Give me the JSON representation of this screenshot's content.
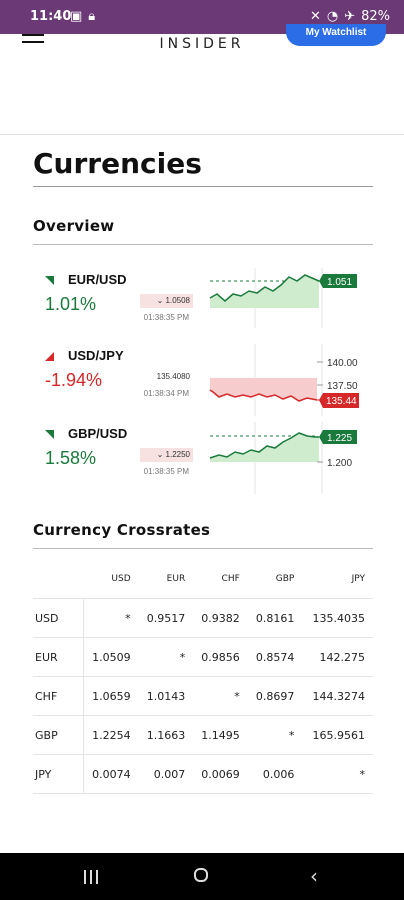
{
  "status_bar": {
    "time": "11:40",
    "left_icons": [
      "image-icon",
      "lock-icon"
    ],
    "right_icons": [
      "mute-icon",
      "wifi-icon",
      "airplane-icon"
    ],
    "battery": "82%"
  },
  "header": {
    "logo": "INSIDER",
    "watchlist_button": "My Watchlist"
  },
  "page_title": "Currencies",
  "overview": {
    "heading": "Overview",
    "rows": [
      {
        "pair": "EUR/USD",
        "change": "1.01%",
        "direction": "down-arrow",
        "price": "1.0508",
        "price_highlight": true,
        "time": "01:38:35 PM",
        "chart_current": "1.051",
        "chart_axis": [],
        "color": "#1a7a3c"
      },
      {
        "pair": "USD/JPY",
        "change": "-1.94%",
        "direction": "up-arrow",
        "price": "135.4080",
        "price_highlight": false,
        "time": "01:38:34 PM",
        "chart_current": "135.44",
        "chart_axis": [
          "140.00",
          "137.50"
        ],
        "color": "#d62828"
      },
      {
        "pair": "GBP/USD",
        "change": "1.58%",
        "direction": "down-arrow",
        "price": "1.2250",
        "price_highlight": true,
        "time": "01:38:35 PM",
        "chart_current": "1.225",
        "chart_axis": [
          "1.200"
        ],
        "color": "#1a7a3c"
      }
    ]
  },
  "crossrates": {
    "heading": "Currency Crossrates",
    "columns": [
      "",
      "USD",
      "EUR",
      "CHF",
      "GBP",
      "JPY"
    ],
    "rows": [
      {
        "label": "USD",
        "values": [
          "*",
          "0.9517",
          "0.9382",
          "0.8161",
          "135.4035"
        ]
      },
      {
        "label": "EUR",
        "values": [
          "1.0509",
          "*",
          "0.9856",
          "0.8574",
          "142.275"
        ]
      },
      {
        "label": "CHF",
        "values": [
          "1.0659",
          "1.0143",
          "*",
          "0.8697",
          "144.3274"
        ]
      },
      {
        "label": "GBP",
        "values": [
          "1.2254",
          "1.1663",
          "1.1495",
          "*",
          "165.9561"
        ]
      },
      {
        "label": "JPY",
        "values": [
          "0.0074",
          "0.007",
          "0.0069",
          "0.006",
          "*"
        ]
      }
    ]
  },
  "nav_bar": {
    "buttons": [
      "recent-apps-icon",
      "home-icon",
      "back-icon"
    ]
  },
  "colors": {
    "positive": "#1a7a3c",
    "negative": "#d62828",
    "status_bar": "#6b3a76",
    "accent": "#2a6de6"
  }
}
